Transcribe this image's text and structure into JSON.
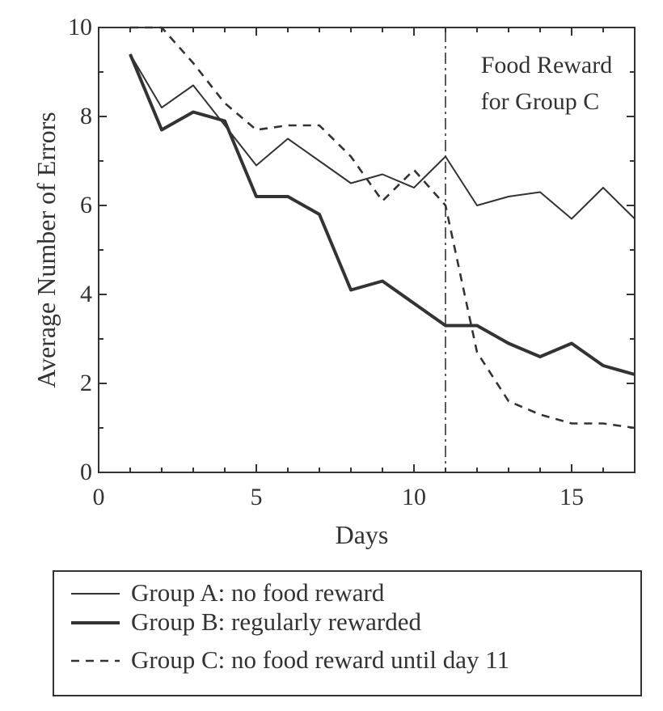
{
  "chart_data": {
    "type": "line",
    "ylabel": "Average Number of Errors",
    "xlabel": "Days",
    "xlim": [
      0,
      17
    ],
    "ylim": [
      0,
      10
    ],
    "x_ticks": [
      0,
      5,
      10,
      15
    ],
    "y_ticks": [
      0,
      2,
      4,
      6,
      8,
      10
    ],
    "grid": false,
    "annotation": {
      "lines": [
        "Food Reward",
        "for Group C"
      ],
      "x": 11
    },
    "legend_position": "below",
    "series": [
      {
        "name": "Group A: no food reward",
        "style": "thin-solid",
        "x": [
          1,
          2,
          3,
          4,
          5,
          6,
          7,
          8,
          9,
          10,
          11,
          12,
          13,
          14,
          15,
          16,
          17
        ],
        "values": [
          9.4,
          8.2,
          8.7,
          7.8,
          6.9,
          7.5,
          7.0,
          6.5,
          6.7,
          6.4,
          7.1,
          6.0,
          6.2,
          6.3,
          5.7,
          6.4,
          5.7
        ]
      },
      {
        "name": "Group B: regularly rewarded",
        "style": "thick-solid",
        "x": [
          1,
          2,
          3,
          4,
          5,
          6,
          7,
          8,
          9,
          10,
          11,
          12,
          13,
          14,
          15,
          16,
          17
        ],
        "values": [
          9.4,
          7.7,
          8.1,
          7.9,
          6.2,
          6.2,
          5.8,
          4.1,
          4.3,
          3.8,
          3.3,
          3.3,
          2.9,
          2.6,
          2.9,
          2.4,
          2.2
        ]
      },
      {
        "name": "Group C: no food reward until day 11",
        "style": "dashed",
        "x": [
          1,
          2,
          3,
          4,
          5,
          6,
          7,
          8,
          9,
          10,
          11,
          12,
          13,
          14,
          15,
          16,
          17
        ],
        "values": [
          10.0,
          10.0,
          9.2,
          8.3,
          7.7,
          7.8,
          7.8,
          7.1,
          6.1,
          6.8,
          6.0,
          2.7,
          1.6,
          1.3,
          1.1,
          1.1,
          1.0
        ]
      }
    ]
  }
}
